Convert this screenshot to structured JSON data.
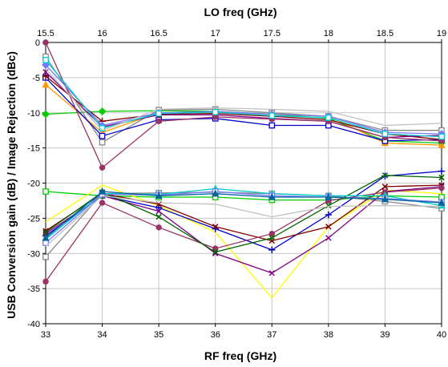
{
  "chart_data": {
    "type": "line",
    "title": "",
    "xlabel": "RF freq (GHz)",
    "x2label": "LO freq (GHz)",
    "ylabel": "USB Conversion gain (dB) / Image Rejection (dBc)",
    "x_ticks": [
      "33",
      "34",
      "35",
      "36",
      "37",
      "38",
      "39",
      "40"
    ],
    "x2_ticks": [
      "15.5",
      "16",
      "16.5",
      "17",
      "17.5",
      "18",
      "18.5",
      "19"
    ],
    "y_ticks": [
      "0",
      "-5",
      "-10",
      "-15",
      "-20",
      "-25",
      "-30",
      "-35",
      "-40"
    ],
    "xlim": [
      33,
      40
    ],
    "x2lim": [
      15.5,
      19
    ],
    "ylim": [
      -40,
      0
    ],
    "grid": true,
    "legend": "none",
    "x": [
      33,
      34,
      35,
      36,
      37,
      38,
      39,
      40
    ],
    "series": [
      {
        "color": "#00cc00",
        "marker": "diamond",
        "values": [
          -10.2,
          -9.8,
          -9.7,
          -9.8,
          -10.2,
          -10.8,
          -14.0,
          -14.3
        ]
      },
      {
        "color": "#888888",
        "marker": "square",
        "values": [
          -2.0,
          -14.2,
          -9.6,
          -9.5,
          -10.0,
          -10.5,
          -12.5,
          -12.5
        ]
      },
      {
        "color": "#ff9900",
        "marker": "triangle",
        "values": [
          -6.0,
          -12.8,
          -10.0,
          -9.9,
          -10.2,
          -10.5,
          -14.3,
          -14.6
        ]
      },
      {
        "color": "#0000cc",
        "marker": "square",
        "values": [
          -5.0,
          -13.3,
          -11.0,
          -10.8,
          -11.8,
          -11.8,
          -14.0,
          -13.8
        ]
      },
      {
        "color": "#800000",
        "marker": "plus",
        "values": [
          -4.8,
          -11.2,
          -10.2,
          -10.1,
          -10.5,
          -11.0,
          -13.0,
          -13.8
        ]
      },
      {
        "color": "#800080",
        "marker": "x",
        "values": [
          -4.2,
          -12.0,
          -10.3,
          -10.3,
          -10.8,
          -11.2,
          -13.5,
          -13.2
        ]
      },
      {
        "color": "#993366",
        "marker": "circle",
        "values": [
          0.0,
          -17.8,
          -11.2,
          -10.6,
          -10.9,
          -11.2,
          -13.5,
          -14.0
        ]
      },
      {
        "color": "#7777ff",
        "marker": "diamond",
        "values": [
          -3.2,
          -11.8,
          -10.0,
          -9.8,
          -10.2,
          -10.5,
          -12.8,
          -13.0
        ]
      },
      {
        "color": "#00cccc",
        "marker": "square",
        "values": [
          -2.5,
          -12.2,
          -10.1,
          -9.9,
          -10.4,
          -10.7,
          -13.0,
          -13.4
        ]
      },
      {
        "color": "#c0c0c0",
        "marker": "none",
        "values": [
          -3.8,
          -12.5,
          -9.5,
          -9.3,
          -9.5,
          -9.8,
          -11.8,
          -11.5
        ]
      },
      {
        "color": "#00cc00",
        "marker": "square",
        "values": [
          -21.2,
          -21.8,
          -22.0,
          -22.0,
          -22.4,
          -22.4,
          -21.8,
          -22.0
        ]
      },
      {
        "color": "#888888",
        "marker": "square",
        "values": [
          -30.5,
          -21.5,
          -21.4,
          -21.3,
          -21.5,
          -21.8,
          -22.6,
          -23.6
        ]
      },
      {
        "color": "#ffff00",
        "marker": "none",
        "values": [
          -25.5,
          -20.3,
          -23.2,
          -27.0,
          -36.3,
          -26.2,
          -21.0,
          -21.5
        ]
      },
      {
        "color": "#0000cc",
        "marker": "plus",
        "values": [
          -27.5,
          -21.8,
          -23.5,
          -26.5,
          -29.5,
          -24.5,
          -19.0,
          -18.3
        ]
      },
      {
        "color": "#800000",
        "marker": "x",
        "values": [
          -26.8,
          -21.5,
          -23.0,
          -26.2,
          -28.2,
          -26.2,
          -20.5,
          -20.3
        ]
      },
      {
        "color": "#800080",
        "marker": "x",
        "values": [
          -27.2,
          -21.8,
          -24.0,
          -30.0,
          -32.8,
          -27.8,
          -21.2,
          -20.5
        ]
      },
      {
        "color": "#993366",
        "marker": "circle",
        "values": [
          -34.0,
          -22.8,
          -26.3,
          -29.3,
          -27.2,
          -22.5,
          -21.3,
          -20.7
        ]
      },
      {
        "color": "#006600",
        "marker": "x",
        "values": [
          -27.0,
          -21.3,
          -24.8,
          -29.8,
          -27.8,
          -23.2,
          -18.9,
          -19.2
        ]
      },
      {
        "color": "#00cccc",
        "marker": "triangle",
        "values": [
          -28.0,
          -21.5,
          -21.6,
          -20.8,
          -21.5,
          -21.8,
          -21.8,
          -23.2
        ]
      },
      {
        "color": "#7777ff",
        "marker": "square",
        "values": [
          -28.5,
          -21.6,
          -21.7,
          -21.2,
          -21.8,
          -22.0,
          -22.2,
          -22.7
        ]
      },
      {
        "color": "#c0c0c0",
        "marker": "none",
        "values": [
          -29.0,
          -21.8,
          -22.8,
          -23.0,
          -24.8,
          -23.3,
          -23.2,
          -23.3
        ]
      },
      {
        "color": "#006699",
        "marker": "triangle",
        "values": [
          -27.8,
          -21.2,
          -21.8,
          -21.5,
          -22.0,
          -22.0,
          -22.3,
          -22.8
        ]
      }
    ]
  }
}
